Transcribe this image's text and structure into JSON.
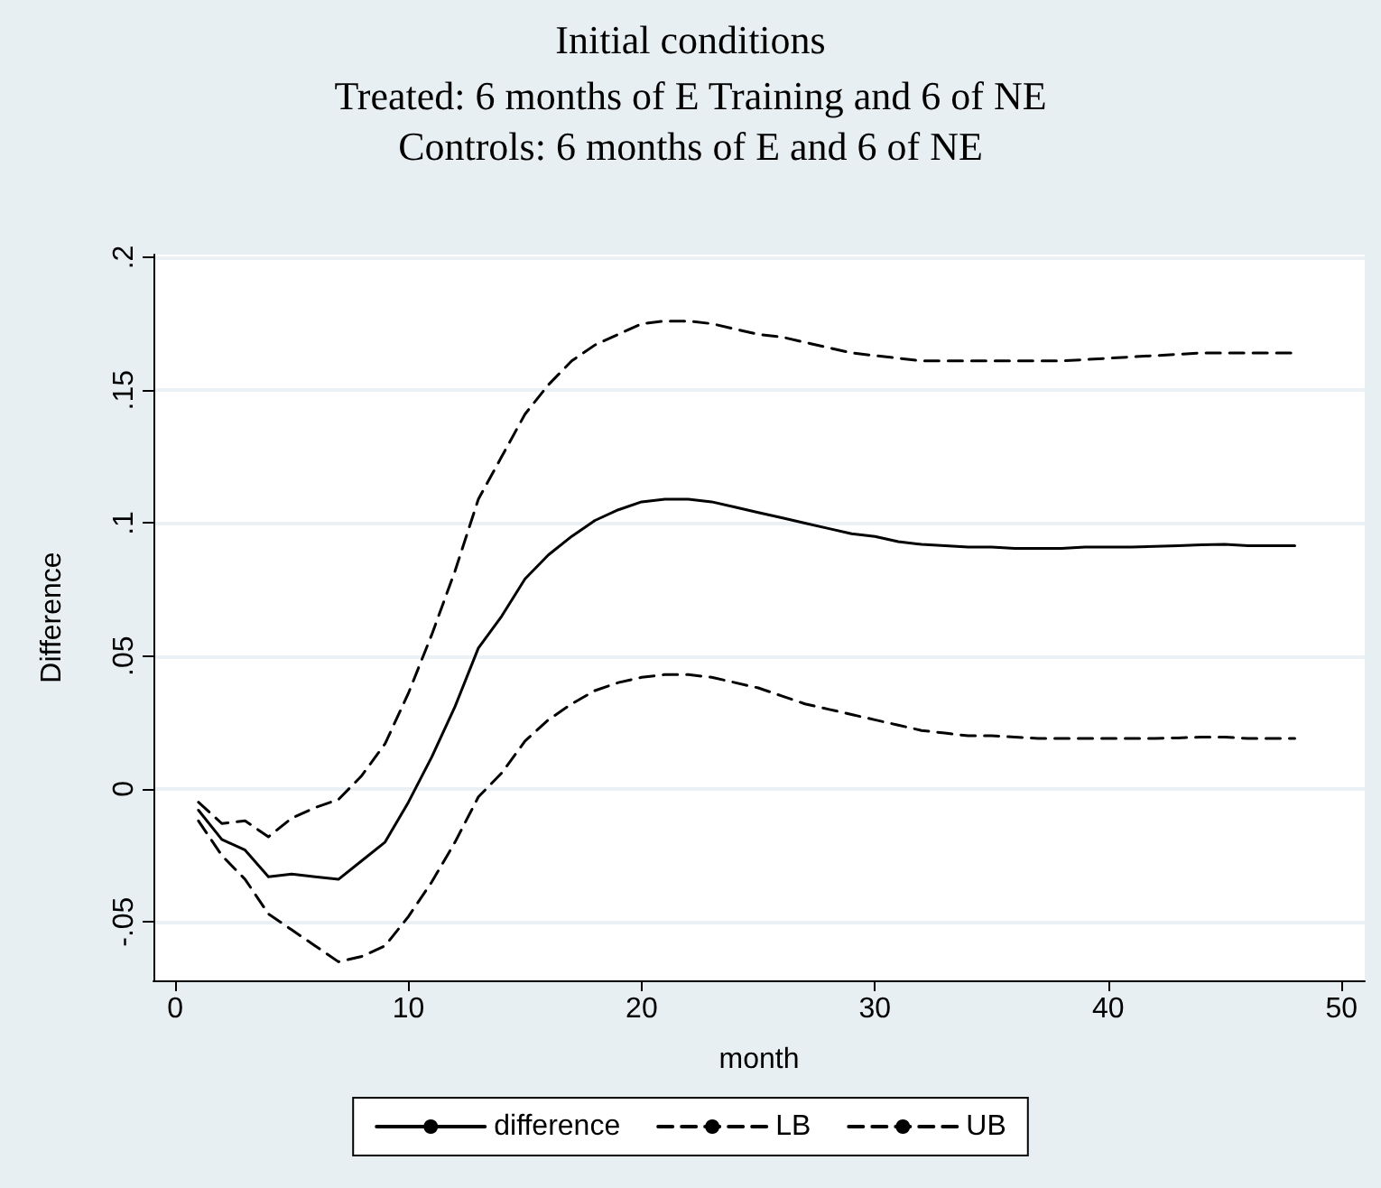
{
  "chart_data": {
    "type": "line",
    "title": "Initial conditions",
    "subtitle": "Treated: 6 months of E Training and 6 of NE\nControls: 6 months of E and 6 of NE",
    "xlabel": "month",
    "ylabel": "Difference",
    "x": [
      1,
      2,
      3,
      4,
      5,
      6,
      7,
      8,
      9,
      10,
      11,
      12,
      13,
      14,
      15,
      16,
      17,
      18,
      19,
      20,
      21,
      22,
      23,
      24,
      25,
      26,
      27,
      28,
      29,
      30,
      31,
      32,
      33,
      34,
      35,
      36,
      37,
      38,
      39,
      40,
      41,
      42,
      43,
      44,
      45,
      46,
      47,
      48
    ],
    "series": [
      {
        "name": "difference",
        "color": "#000000",
        "line_style": "solid",
        "values": [
          -0.008,
          -0.019,
          -0.023,
          -0.033,
          -0.032,
          -0.033,
          -0.034,
          -0.027,
          -0.02,
          -0.005,
          0.012,
          0.031,
          0.053,
          0.065,
          0.079,
          0.088,
          0.095,
          0.101,
          0.105,
          0.108,
          0.109,
          0.109,
          0.108,
          0.106,
          0.104,
          0.102,
          0.1,
          0.098,
          0.096,
          0.095,
          0.093,
          0.092,
          0.0915,
          0.091,
          0.091,
          0.0905,
          0.0905,
          0.0905,
          0.091,
          0.091,
          0.091,
          0.0912,
          0.0915,
          0.0918,
          0.092,
          0.0915,
          0.0915,
          0.0915
        ]
      },
      {
        "name": "LB",
        "color": "#000000",
        "line_style": "dashed",
        "values": [
          -0.012,
          -0.025,
          -0.034,
          -0.047,
          -0.053,
          -0.059,
          -0.065,
          -0.063,
          -0.059,
          -0.048,
          -0.035,
          -0.02,
          -0.003,
          0.006,
          0.018,
          0.026,
          0.032,
          0.037,
          0.04,
          0.042,
          0.043,
          0.043,
          0.042,
          0.04,
          0.038,
          0.035,
          0.032,
          0.03,
          0.028,
          0.026,
          0.024,
          0.022,
          0.021,
          0.02,
          0.02,
          0.0195,
          0.019,
          0.019,
          0.019,
          0.019,
          0.019,
          0.019,
          0.0192,
          0.0195,
          0.0195,
          0.019,
          0.019,
          0.019
        ]
      },
      {
        "name": "UB",
        "color": "#000000",
        "line_style": "dashed",
        "values": [
          -0.005,
          -0.013,
          -0.012,
          -0.018,
          -0.011,
          -0.007,
          -0.004,
          0.005,
          0.017,
          0.036,
          0.058,
          0.082,
          0.109,
          0.125,
          0.141,
          0.152,
          0.161,
          0.167,
          0.171,
          0.175,
          0.176,
          0.176,
          0.175,
          0.173,
          0.171,
          0.17,
          0.168,
          0.166,
          0.164,
          0.163,
          0.162,
          0.161,
          0.161,
          0.161,
          0.161,
          0.161,
          0.161,
          0.161,
          0.1615,
          0.162,
          0.1625,
          0.163,
          0.1635,
          0.164,
          0.164,
          0.164,
          0.164,
          0.164
        ]
      }
    ],
    "xlim": [
      -0.93,
      51
    ],
    "xticks": [
      0,
      10,
      20,
      30,
      40,
      50
    ],
    "ylim": [
      -0.072,
      0.201
    ],
    "yticks": [
      {
        "value": -0.05,
        "label": "-.05"
      },
      0,
      {
        "value": 0.05,
        "label": ".05"
      },
      {
        "value": 0.1,
        "label": ".1"
      },
      {
        "value": 0.15,
        "label": ".15"
      },
      {
        "value": 0.2,
        "label": ".2"
      }
    ],
    "grid": "y",
    "legend": "bottom",
    "marker": "none"
  }
}
